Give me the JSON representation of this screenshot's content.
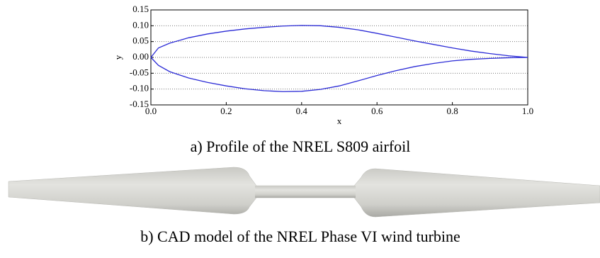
{
  "chart_data": {
    "type": "line",
    "x_label": "x",
    "y_label": "y",
    "x": [
      0,
      0.02,
      0.05,
      0.1,
      0.15,
      0.2,
      0.25,
      0.3,
      0.35,
      0.4,
      0.45,
      0.5,
      0.55,
      0.6,
      0.65,
      0.7,
      0.75,
      0.8,
      0.85,
      0.9,
      0.95,
      1.0
    ],
    "series": [
      {
        "color": "#2b2bd6",
        "values": [
          0,
          0.03,
          0.045,
          0.062,
          0.074,
          0.083,
          0.09,
          0.095,
          0.099,
          0.101,
          0.1,
          0.095,
          0.087,
          0.076,
          0.064,
          0.052,
          0.041,
          0.03,
          0.02,
          0.012,
          0.005,
          0
        ]
      },
      {
        "color": "#2b2bd6",
        "values": [
          0,
          -0.025,
          -0.045,
          -0.065,
          -0.079,
          -0.09,
          -0.099,
          -0.105,
          -0.108,
          -0.107,
          -0.101,
          -0.09,
          -0.074,
          -0.057,
          -0.042,
          -0.029,
          -0.019,
          -0.011,
          -0.006,
          -0.003,
          -0.001,
          0
        ]
      }
    ],
    "xlim": [
      0,
      1.0
    ],
    "xticks": [
      {
        "value": 0,
        "label": "0.0"
      },
      0.2,
      0.4,
      0.6,
      0.8,
      {
        "value": 1.0,
        "label": "1.0"
      }
    ],
    "ylim": [
      -0.15,
      0.15
    ],
    "yticks": [
      {
        "value": -0.15,
        "label": "-0.15"
      },
      {
        "value": -0.1,
        "label": "-0.10"
      },
      {
        "value": -0.05,
        "label": "-0.05"
      },
      {
        "value": 0,
        "label": "0.00"
      },
      {
        "value": 0.05,
        "label": "0.05"
      },
      {
        "value": 0.1,
        "label": "0.10"
      },
      {
        "value": 0.15,
        "label": "0.15"
      }
    ],
    "grid": "horizontal"
  },
  "caption_a": "a) Profile of the NREL S809 airfoil",
  "caption_b": "b) CAD model of the NREL Phase VI wind turbine"
}
